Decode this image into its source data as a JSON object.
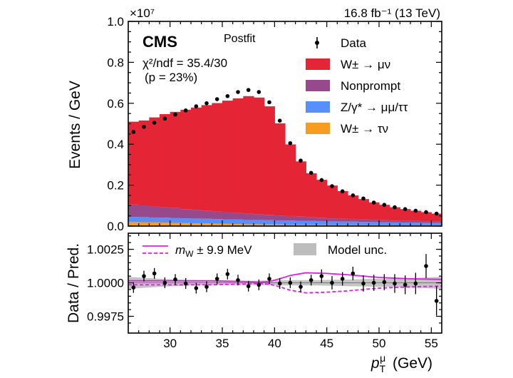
{
  "chart_data": [
    {
      "type": "stacked-histogram",
      "panel": "main",
      "experiment_label": "CMS",
      "fit_label": "Postfit",
      "lumi_label": "16.8 fb⁻¹ (13 TeV)",
      "ylabel": "Events / GeV",
      "y_multiplier": "×10⁷",
      "stats": {
        "chi2_label": "χ²/ndf = 35.4/30",
        "p_label": "(p = 23%)"
      },
      "xlim": [
        26,
        56
      ],
      "ylim": [
        0,
        1.0
      ],
      "yticks": [
        0.0,
        0.2,
        0.4,
        0.6,
        0.8,
        1.0
      ],
      "ytick_labels": [
        "0.0",
        "0.2",
        "0.4",
        "0.6",
        "0.8",
        "1.0"
      ],
      "bin_edges": [
        26,
        27,
        28,
        29,
        30,
        31,
        32,
        33,
        34,
        35,
        36,
        37,
        38,
        39,
        40,
        41,
        42,
        43,
        44,
        45,
        46,
        47,
        48,
        49,
        50,
        51,
        52,
        53,
        54,
        55,
        56
      ],
      "series": [
        {
          "name": "W± → μν",
          "color": "#e42536",
          "values": [
            0.405,
            0.415,
            0.435,
            0.455,
            0.47,
            0.485,
            0.5,
            0.515,
            0.53,
            0.545,
            0.56,
            0.575,
            0.57,
            0.53,
            0.45,
            0.35,
            0.27,
            0.215,
            0.185,
            0.16,
            0.135,
            0.115,
            0.1,
            0.085,
            0.075,
            0.065,
            0.058,
            0.05,
            0.045,
            0.038
          ]
        },
        {
          "name": "Nonprompt",
          "color": "#964a8b",
          "values": [
            0.06,
            0.057,
            0.054,
            0.051,
            0.048,
            0.045,
            0.042,
            0.04,
            0.037,
            0.035,
            0.032,
            0.03,
            0.028,
            0.026,
            0.024,
            0.022,
            0.02,
            0.018,
            0.017,
            0.015,
            0.014,
            0.013,
            0.012,
            0.011,
            0.01,
            0.009,
            0.008,
            0.008,
            0.007,
            0.007
          ]
        },
        {
          "name": "Z/γ* → μμ/ττ",
          "color": "#5790fc",
          "values": [
            0.025,
            0.025,
            0.024,
            0.024,
            0.024,
            0.023,
            0.023,
            0.023,
            0.022,
            0.022,
            0.022,
            0.021,
            0.021,
            0.021,
            0.02,
            0.02,
            0.019,
            0.019,
            0.018,
            0.018,
            0.017,
            0.017,
            0.016,
            0.016,
            0.015,
            0.015,
            0.014,
            0.014,
            0.013,
            0.013
          ]
        },
        {
          "name": "W± → τν",
          "color": "#f89c20",
          "values": [
            0.02,
            0.019,
            0.018,
            0.017,
            0.016,
            0.015,
            0.014,
            0.013,
            0.012,
            0.011,
            0.01,
            0.009,
            0.009,
            0.008,
            0.008,
            0.007,
            0.007,
            0.006,
            0.006,
            0.005,
            0.005,
            0.005,
            0.004,
            0.004,
            0.004,
            0.003,
            0.003,
            0.003,
            0.003,
            0.003
          ]
        }
      ],
      "data_series": {
        "name": "Data",
        "color": "#000000",
        "x": [
          26.5,
          27.5,
          28.5,
          29.5,
          30.5,
          31.5,
          32.5,
          33.5,
          34.5,
          35.5,
          36.5,
          37.5,
          38.5,
          39.5,
          40.5,
          41.5,
          42.5,
          43.5,
          44.5,
          45.5,
          46.5,
          47.5,
          48.5,
          49.5,
          50.5,
          51.5,
          52.5,
          53.5,
          54.5,
          55.5
        ],
        "y": [
          0.46,
          0.485,
          0.505,
          0.525,
          0.545,
          0.565,
          0.585,
          0.6,
          0.62,
          0.635,
          0.655,
          0.665,
          0.655,
          0.605,
          0.515,
          0.405,
          0.32,
          0.26,
          0.225,
          0.195,
          0.17,
          0.15,
          0.135,
          0.115,
          0.104,
          0.092,
          0.083,
          0.075,
          0.068,
          0.061
        ]
      },
      "legend": [
        {
          "label": "Data",
          "marker": "point"
        },
        {
          "label": "W± → μν",
          "marker": "box",
          "color": "#e42536"
        },
        {
          "label": "Nonprompt",
          "marker": "box",
          "color": "#964a8b"
        },
        {
          "label": "Z/γ* → μμ/ττ",
          "marker": "box",
          "color": "#5790fc"
        },
        {
          "label": "W± → τν",
          "marker": "box",
          "color": "#f89c20"
        }
      ]
    },
    {
      "type": "ratio",
      "panel": "ratio",
      "ylabel": "Data / Pred.",
      "xlabel": "pᵀᵘ (GeV)",
      "xlim": [
        26,
        56
      ],
      "ylim": [
        0.99625,
        1.0037
      ],
      "xticks": [
        30,
        35,
        40,
        45,
        50,
        55
      ],
      "xtick_labels": [
        "30",
        "35",
        "40",
        "45",
        "50",
        "55"
      ],
      "yticks": [
        0.9975,
        1.0,
        1.0025
      ],
      "ytick_labels": [
        "0.9975",
        "1.0000",
        "1.0025"
      ],
      "legend": [
        {
          "label": "m_W ± 9.9 MeV",
          "marker": "lines",
          "color": "#e11ce6"
        },
        {
          "label": "Model unc.",
          "marker": "box",
          "color": "#bdbdbd"
        }
      ],
      "points": {
        "x": [
          26.5,
          27.5,
          28.5,
          29.5,
          30.5,
          31.5,
          32.5,
          33.5,
          34.5,
          35.5,
          36.5,
          37.5,
          38.5,
          39.5,
          40.5,
          41.5,
          42.5,
          43.5,
          44.5,
          45.5,
          46.5,
          47.5,
          48.5,
          49.5,
          50.5,
          51.5,
          52.5,
          53.5,
          54.5,
          55.5
        ],
        "y": [
          0.99965,
          1.0005,
          1.0007,
          1.0,
          1.00025,
          0.99995,
          0.9996,
          0.9997,
          1.0003,
          1.00065,
          1.0002,
          0.99975,
          0.99985,
          1.0003,
          0.99995,
          1.0,
          0.9997,
          1.0002,
          1.0005,
          1.0,
          1.0003,
          1.0007,
          0.99995,
          1.0,
          1.00005,
          0.99995,
          0.99985,
          0.99995,
          1.00125,
          0.99865
        ],
        "err": [
          0.0004,
          0.0004,
          0.0004,
          0.0004,
          0.0004,
          0.0004,
          0.0004,
          0.0004,
          0.0004,
          0.0004,
          0.0004,
          0.0004,
          0.0004,
          0.0004,
          0.0004,
          0.0004,
          0.0004,
          0.0004,
          0.0005,
          0.0005,
          0.0005,
          0.0005,
          0.0006,
          0.0006,
          0.0006,
          0.0007,
          0.0007,
          0.0008,
          0.0009,
          0.0011
        ]
      },
      "model_unc": {
        "x": [
          26,
          29,
          32,
          35,
          38,
          41,
          44,
          47,
          50,
          53,
          56
        ],
        "half_width": [
          0.00045,
          0.0003,
          0.0002,
          0.00015,
          0.00015,
          0.0002,
          0.0002,
          0.00025,
          0.0003,
          0.00035,
          0.00045
        ]
      },
      "mw_up": {
        "x": [
          26,
          30,
          34,
          37,
          38.5,
          39.5,
          40.5,
          41.5,
          43,
          45,
          47,
          50,
          53,
          56
        ],
        "y": [
          1.00015,
          1.00015,
          1.00015,
          1.0001,
          1.00005,
          1.0001,
          1.0003,
          1.00055,
          1.00075,
          1.0007,
          1.0006,
          1.0004,
          1.0003,
          1.00025
        ]
      },
      "mw_down": {
        "x": [
          26,
          30,
          34,
          37,
          38.5,
          39.5,
          40.5,
          41.5,
          43,
          45,
          47,
          50,
          53,
          56
        ],
        "y": [
          0.99985,
          0.99985,
          0.99985,
          0.9999,
          0.99995,
          0.9999,
          0.9997,
          0.99945,
          0.99925,
          0.9993,
          0.9994,
          0.9996,
          0.9997,
          0.99975
        ]
      }
    }
  ]
}
